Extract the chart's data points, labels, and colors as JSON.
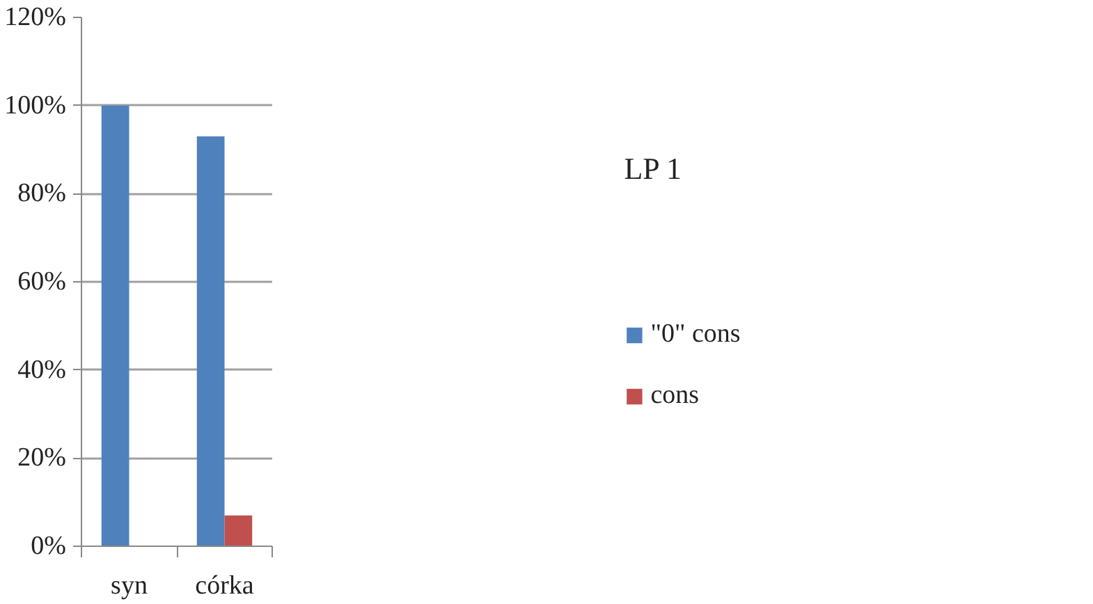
{
  "chart_data": {
    "type": "bar",
    "categories": [
      "syn",
      "córka"
    ],
    "series": [
      {
        "name": "\"0\" cons",
        "color": "#4f81bd",
        "values": [
          100,
          93
        ]
      },
      {
        "name": "cons",
        "color": "#c0504d",
        "values": [
          0,
          7
        ]
      }
    ],
    "legend_title": "LP 1",
    "legend": "right",
    "ylim": [
      0,
      120
    ],
    "yticks": [
      {
        "value": 0,
        "label": "0%"
      },
      {
        "value": 20,
        "label": "20%"
      },
      {
        "value": 40,
        "label": "40%"
      },
      {
        "value": 60,
        "label": "60%"
      },
      {
        "value": 80,
        "label": "80%"
      },
      {
        "value": 100,
        "label": "100%"
      },
      {
        "value": 120,
        "label": "120%"
      }
    ],
    "grid": "y"
  }
}
